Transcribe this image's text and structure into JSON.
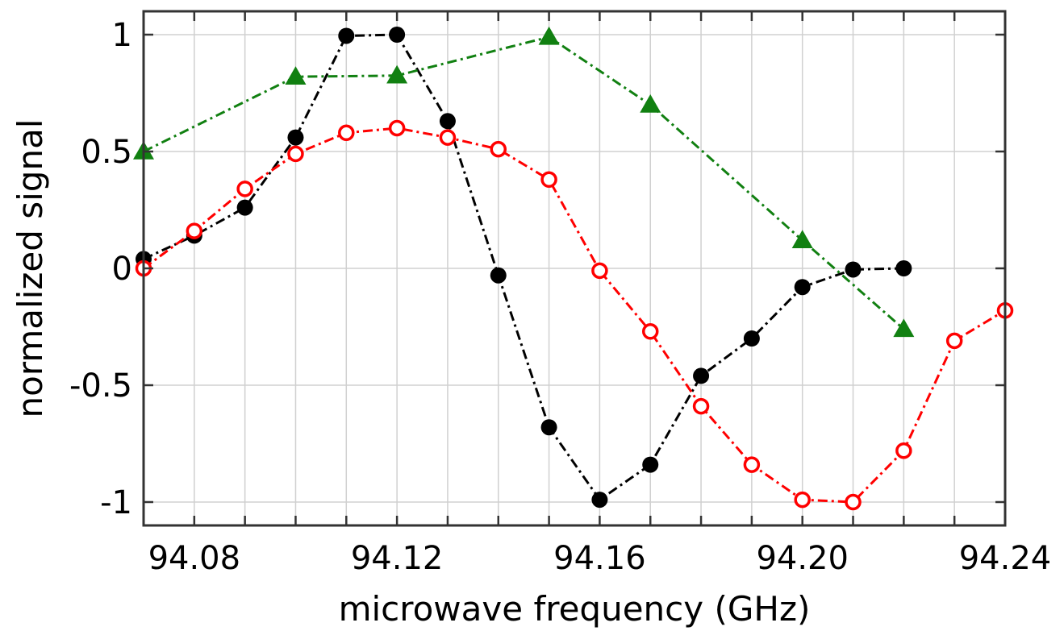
{
  "chart_data": {
    "type": "line",
    "title": "",
    "xlabel": "microwave frequency (GHz)",
    "ylabel": "normalized signal",
    "xlim": [
      94.07,
      94.24
    ],
    "ylim": [
      -1.1,
      1.1
    ],
    "x_ticks": [
      94.08,
      94.12,
      94.16,
      94.2,
      94.24
    ],
    "x_tick_labels": [
      "94.08",
      "94.12",
      "94.16",
      "94.20",
      "94.24"
    ],
    "x_grid": [
      94.07,
      94.08,
      94.09,
      94.1,
      94.11,
      94.12,
      94.13,
      94.14,
      94.15,
      94.16,
      94.17,
      94.18,
      94.19,
      94.2,
      94.21,
      94.22,
      94.23,
      94.24
    ],
    "y_ticks": [
      -1,
      -0.5,
      0,
      0.5,
      1
    ],
    "y_tick_labels": [
      "-1",
      "-0.5",
      "0",
      "0.5",
      "1"
    ],
    "grid": true,
    "legend": "none",
    "series": [
      {
        "color": "#000000",
        "marker": "filled-circle",
        "line_style": "dash-dot",
        "points": [
          [
            94.07,
            0.04
          ],
          [
            94.08,
            0.14
          ],
          [
            94.09,
            0.26
          ],
          [
            94.1,
            0.56
          ],
          [
            94.11,
            0.995
          ],
          [
            94.12,
            1.0
          ],
          [
            94.13,
            0.63
          ],
          [
            94.14,
            -0.03
          ],
          [
            94.15,
            -0.68
          ],
          [
            94.16,
            -0.99
          ],
          [
            94.17,
            -0.84
          ],
          [
            94.18,
            -0.46
          ],
          [
            94.19,
            -0.3
          ],
          [
            94.2,
            -0.08
          ],
          [
            94.21,
            -0.005
          ],
          [
            94.22,
            0.0
          ]
        ]
      },
      {
        "color": "#ff0000",
        "marker": "open-circle",
        "line_style": "dash-dot",
        "points": [
          [
            94.07,
            0.0
          ],
          [
            94.08,
            0.16
          ],
          [
            94.09,
            0.34
          ],
          [
            94.1,
            0.49
          ],
          [
            94.11,
            0.58
          ],
          [
            94.12,
            0.6
          ],
          [
            94.13,
            0.56
          ],
          [
            94.14,
            0.51
          ],
          [
            94.15,
            0.38
          ],
          [
            94.16,
            -0.01
          ],
          [
            94.17,
            -0.27
          ],
          [
            94.18,
            -0.59
          ],
          [
            94.19,
            -0.84
          ],
          [
            94.2,
            -0.99
          ],
          [
            94.21,
            -1.0
          ],
          [
            94.22,
            -0.78
          ],
          [
            94.23,
            -0.31
          ],
          [
            94.24,
            -0.18
          ]
        ]
      },
      {
        "color": "#118011",
        "marker": "filled-triangle",
        "line_style": "dash-dot",
        "points": [
          [
            94.07,
            0.5
          ],
          [
            94.1,
            0.82
          ],
          [
            94.12,
            0.825
          ],
          [
            94.15,
            0.99
          ],
          [
            94.17,
            0.7
          ],
          [
            94.2,
            0.12
          ],
          [
            94.22,
            -0.26
          ]
        ]
      }
    ]
  }
}
